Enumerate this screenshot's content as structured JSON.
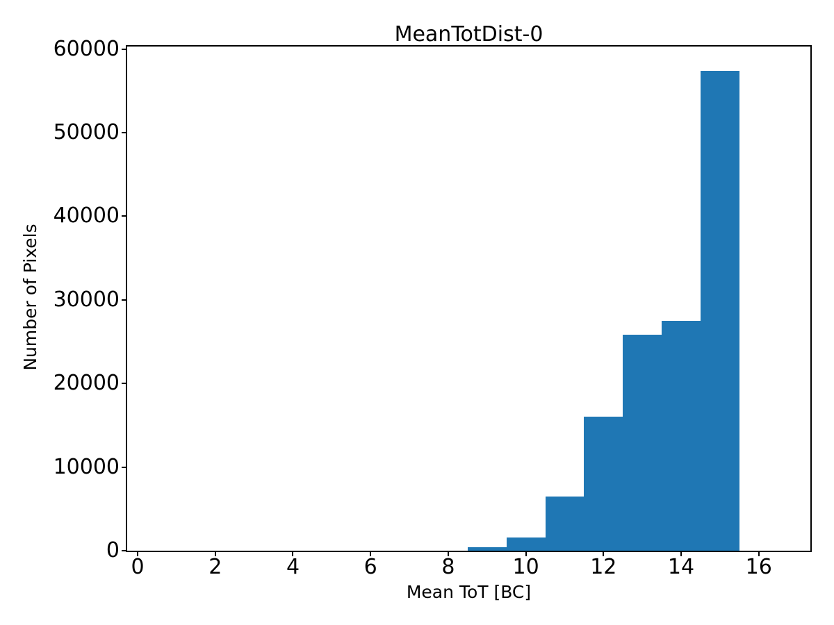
{
  "figure": {
    "background_color": "#ffffff",
    "text_color": "#000000"
  },
  "chart_data": {
    "type": "bar",
    "subtype": "histogram",
    "title": "MeanTotDist-0",
    "xlabel": "Mean ToT [BC]",
    "ylabel": "Number of Pixels",
    "bin_edges": [
      8.5,
      9.5,
      10.5,
      11.5,
      12.5,
      13.5,
      14.5,
      15.5
    ],
    "values": [
      400,
      1600,
      6500,
      16000,
      25800,
      27500,
      57400
    ],
    "bar_color": "#1f77b4",
    "xticks": [
      0,
      2,
      4,
      6,
      8,
      10,
      12,
      14,
      16
    ],
    "yticks": [
      0,
      10000,
      20000,
      30000,
      40000,
      50000,
      60000
    ],
    "xlim": [
      -0.27,
      17.33
    ],
    "ylim": [
      0,
      60300
    ],
    "grid": false,
    "legend_position": "none"
  }
}
